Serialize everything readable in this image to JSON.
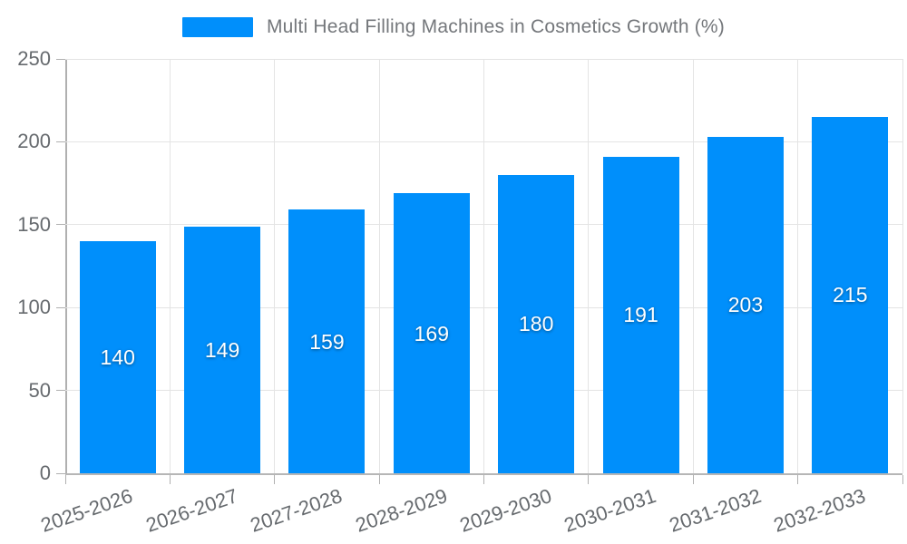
{
  "chart_data": {
    "type": "bar",
    "title": "Multi Head Filling Machines in Cosmetics Growth (%)",
    "categories": [
      "2025-2026",
      "2026-2027",
      "2027-2028",
      "2028-2029",
      "2029-2030",
      "2030-2031",
      "2031-2032",
      "2032-2033"
    ],
    "values": [
      140,
      149,
      159,
      169,
      180,
      191,
      203,
      215
    ],
    "series_name": "Multi Head Filling Machines in Cosmetics Growth (%)",
    "xlabel": "",
    "ylabel": "",
    "ylim": [
      0,
      250
    ],
    "yticks": [
      0,
      50,
      100,
      150,
      200,
      250
    ],
    "grid": "horizontal-and-vertical",
    "legend_position": "top",
    "data_labels": "inside-center-white"
  },
  "legend": {
    "series_label": "Multi Head Filling Machines in Cosmetics Growth (%)"
  },
  "colors": {
    "bar": "#008FFB",
    "grid": "#e4e4e4",
    "axis": "#b0b0b0",
    "axis_text": "#666a6e",
    "legend_text": "#74777b",
    "data_label": "#ffffff",
    "background": "#ffffff"
  }
}
